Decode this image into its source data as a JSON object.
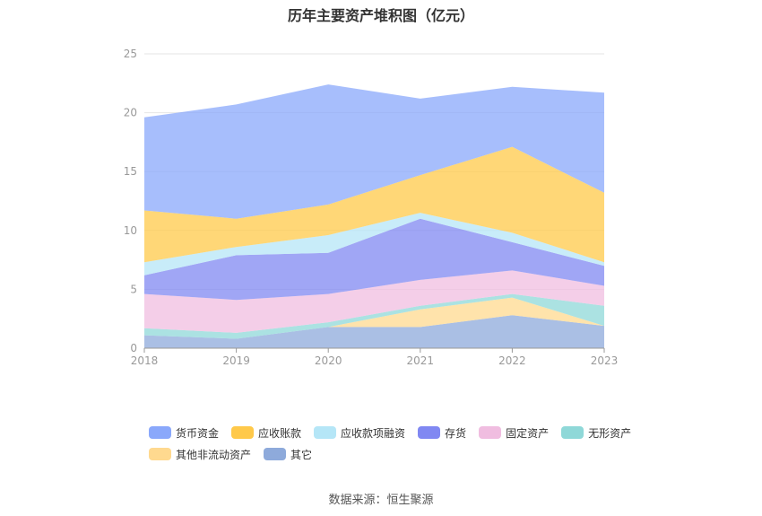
{
  "chart_data": {
    "type": "area",
    "stacked": true,
    "title": "历年主要资产堆积图（亿元）",
    "x": [
      "2018",
      "2019",
      "2020",
      "2021",
      "2022",
      "2023"
    ],
    "ylim": [
      0,
      25
    ],
    "yticks": [
      0,
      5,
      10,
      15,
      20,
      25
    ],
    "grid": true,
    "legend_position": "bottom",
    "series": [
      {
        "name": "其它",
        "color": "#8eaadb",
        "values": [
          1.1,
          0.8,
          1.8,
          1.8,
          2.8,
          1.9
        ]
      },
      {
        "name": "其他非流动资产",
        "color": "#ffd98f",
        "values": [
          0.0,
          0.0,
          0.0,
          1.5,
          1.5,
          0.0
        ]
      },
      {
        "name": "无形资产",
        "color": "#8fd8d8",
        "values": [
          0.6,
          0.5,
          0.4,
          0.3,
          0.3,
          1.7
        ]
      },
      {
        "name": "固定资产",
        "color": "#f0bde0",
        "values": [
          2.9,
          2.8,
          2.4,
          2.2,
          2.0,
          1.7
        ]
      },
      {
        "name": "存货",
        "color": "#8088f2",
        "values": [
          1.6,
          3.8,
          3.5,
          5.2,
          2.4,
          1.7
        ]
      },
      {
        "name": "应收款项融资",
        "color": "#b5e6f7",
        "values": [
          1.1,
          0.7,
          1.5,
          0.5,
          0.8,
          0.3
        ]
      },
      {
        "name": "应收账款",
        "color": "#ffc94a",
        "values": [
          4.4,
          2.4,
          2.6,
          3.2,
          7.3,
          5.9
        ]
      },
      {
        "name": "货币资金",
        "color": "#8aa8fb",
        "values": [
          7.9,
          9.7,
          10.2,
          6.5,
          5.1,
          8.5
        ]
      }
    ],
    "legend_order": [
      "货币资金",
      "应收账款",
      "应收款项融资",
      "存货",
      "固定资产",
      "无形资产",
      "其他非流动资产",
      "其它"
    ]
  },
  "source": "数据来源：恒生聚源"
}
